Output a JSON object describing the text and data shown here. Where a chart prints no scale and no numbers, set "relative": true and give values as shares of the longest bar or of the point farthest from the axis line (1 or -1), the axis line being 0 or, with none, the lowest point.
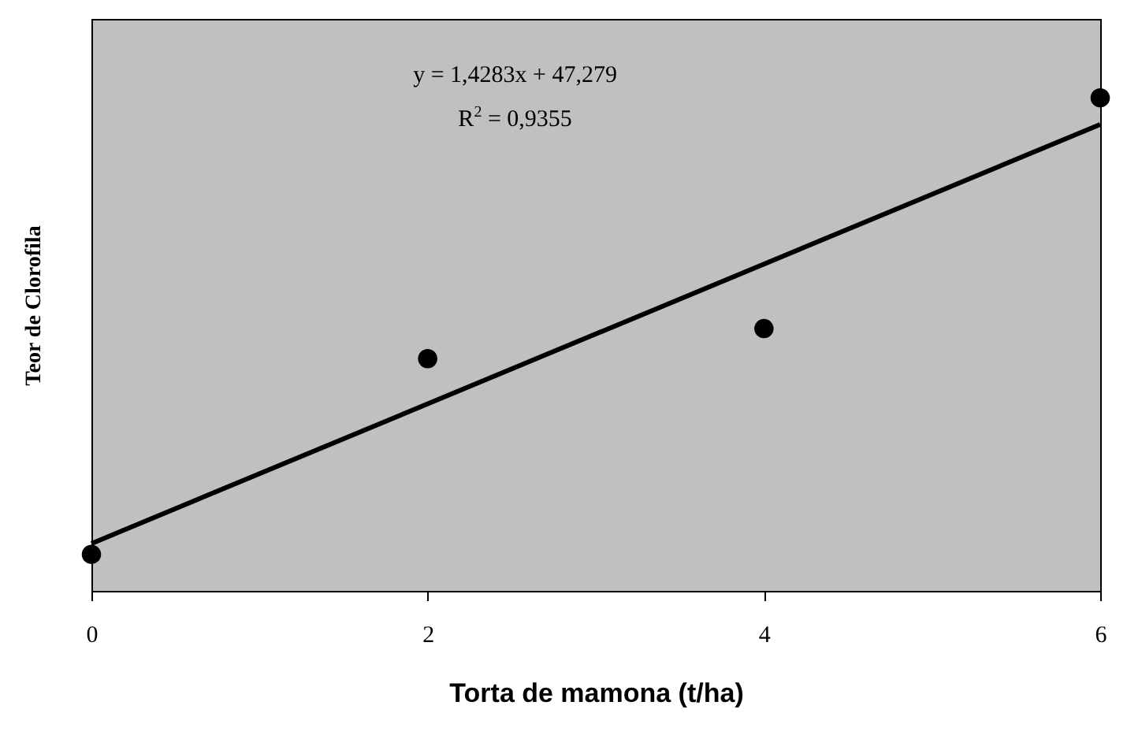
{
  "chart_data": {
    "type": "scatter",
    "xlabel": "Torta de mamona (t/ha)",
    "ylabel": "Teor de Clorofila",
    "relative": true,
    "xlim": [
      0,
      6
    ],
    "xticks": [
      0,
      2,
      4,
      6
    ],
    "grid": false,
    "annotations": [
      "y = 1,4283x + 47,279",
      "R$^{2}$ = 0,9355"
    ],
    "series": [
      {
        "color": "#000000",
        "marker": "circle",
        "x": [
          0,
          2,
          4,
          6
        ],
        "values": [
          0.074,
          0.471,
          0.532,
          1
        ]
      },
      {
        "type": "line",
        "color": "#000000",
        "line_style": "solid",
        "marker": "none",
        "x": [
          0,
          6
        ],
        "values": [
          0.096,
          0.946
        ]
      }
    ]
  }
}
